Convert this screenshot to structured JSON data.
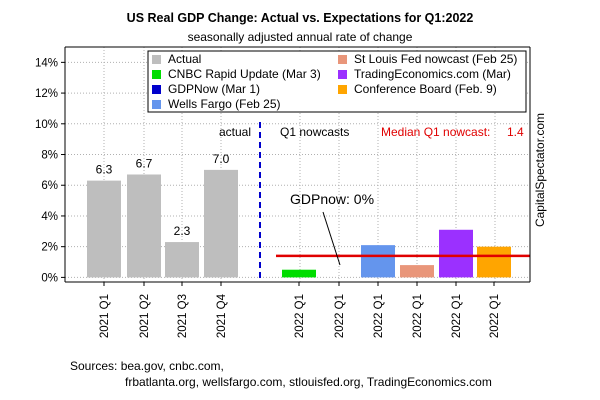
{
  "chart_data": {
    "type": "bar",
    "title": "US Real GDP Change: Actual vs. Expectations for Q1:2022",
    "subtitle": "seasonally adjusted annual rate of change",
    "xlabel": "",
    "ylabel": "",
    "ylim": [
      -0.3,
      15
    ],
    "grid": true,
    "y_ticks": [
      0,
      2,
      4,
      6,
      8,
      10,
      12,
      14
    ],
    "y_tick_labels": [
      "0%",
      "2%",
      "4%",
      "6%",
      "8%",
      "10%",
      "12%",
      "14%"
    ],
    "categories": [
      "2021 Q1",
      "2021 Q2",
      "2021 Q3",
      "2021 Q4",
      "2022 Q1",
      "2022 Q1",
      "2022 Q1",
      "2022 Q1",
      "2022 Q1",
      "2022 Q1"
    ],
    "series": [
      {
        "name": "Actual",
        "color": "#bebebe",
        "values": [
          6.3,
          6.7,
          2.3,
          7.0,
          null,
          null,
          null,
          null,
          null,
          null
        ],
        "labels": [
          "6.3",
          "6.7",
          "2.3",
          "7.0"
        ]
      },
      {
        "name": "CNBC Rapid Update (Mar 3)",
        "color": "#00dd00",
        "values": [
          null,
          null,
          null,
          null,
          0.5,
          null,
          null,
          null,
          null,
          null
        ]
      },
      {
        "name": "GDPNow (Mar 1)",
        "color": "#0000cc",
        "values": [
          null,
          null,
          null,
          null,
          null,
          0.0,
          null,
          null,
          null,
          null
        ]
      },
      {
        "name": "Wells Fargo (Feb 25)",
        "color": "#6495ed",
        "values": [
          null,
          null,
          null,
          null,
          null,
          null,
          2.1,
          null,
          null,
          null
        ]
      },
      {
        "name": "St Louis Fed nowcast (Feb 25)",
        "color": "#e9967a",
        "values": [
          null,
          null,
          null,
          null,
          null,
          null,
          null,
          0.8,
          null,
          null
        ]
      },
      {
        "name": "TradingEconomics.com (Mar)",
        "color": "#9b30ff",
        "values": [
          null,
          null,
          null,
          null,
          null,
          null,
          null,
          null,
          3.1,
          null
        ]
      },
      {
        "name": "Conference Board (Feb. 9)",
        "color": "#ffa500",
        "values": [
          null,
          null,
          null,
          null,
          null,
          null,
          null,
          null,
          null,
          2.0
        ]
      }
    ],
    "median_line": {
      "value": 1.4,
      "color": "#e00000"
    },
    "divider_color": "#0000cc",
    "annotations": {
      "actual": "actual",
      "nowcasts": "Q1 nowcasts",
      "median_label": "Median Q1 nowcast:",
      "median_value": "1.4",
      "gdpnow": "GDPnow: 0%"
    },
    "legend_position": "top",
    "watermark": "CapitalSpectator.com",
    "sources_line1": "Sources: bea.gov, cnbc.com,",
    "sources_line2": "frbatlanta.org, wellsfargo.com, stlouisfed.org, TradingEconomics.com"
  }
}
